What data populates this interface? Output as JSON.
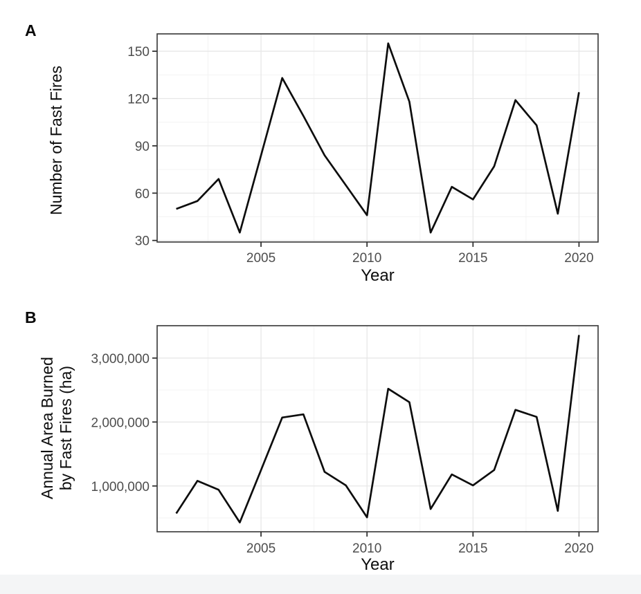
{
  "page": {
    "background": "#ffffff",
    "bottom_bar_color": "#f4f5f6"
  },
  "chart_data": [
    {
      "panel_label": "A",
      "type": "line",
      "title": "",
      "xlabel": "Year",
      "ylabel": "Number of Fast Fires",
      "ylabel_lines": [
        "Number of Fast Fires"
      ],
      "x": [
        2001,
        2002,
        2003,
        2004,
        2005,
        2006,
        2007,
        2008,
        2009,
        2010,
        2011,
        2012,
        2013,
        2014,
        2015,
        2016,
        2017,
        2018,
        2019,
        2020
      ],
      "values": [
        50,
        55,
        69,
        35,
        84,
        133,
        109,
        84,
        65,
        46,
        155,
        118,
        35,
        64,
        56,
        77,
        119,
        103,
        47,
        124
      ],
      "xlim": [
        2000.1,
        2020.9
      ],
      "ylim": [
        29,
        161
      ],
      "x_ticks": [
        2005,
        2010,
        2015,
        2020
      ],
      "x_tick_labels": [
        "2005",
        "2010",
        "2015",
        "2020"
      ],
      "x_minor_ticks": [
        2002.5,
        2007.5,
        2012.5,
        2017.5
      ],
      "y_ticks": [
        30,
        60,
        90,
        120,
        150
      ],
      "y_tick_labels": [
        "30",
        "60",
        "90",
        "120",
        "150"
      ],
      "y_minor_ticks": [
        45,
        75,
        105,
        135
      ],
      "grid": true,
      "legend": "none",
      "line_color": "#0d0d0d",
      "tick_label_color": "#4d4d4d",
      "tick_mark_color": "#333333",
      "grid_major_color": "#e7e7e7",
      "grid_minor_color": "#f3f3f3",
      "border_color": "#414141",
      "plot_background": "#ffffff"
    },
    {
      "panel_label": "B",
      "type": "line",
      "title": "",
      "xlabel": "Year",
      "ylabel": "Annual Area Burned by Fast Fires (ha)",
      "ylabel_lines": [
        "Annual Area Burned",
        "by Fast Fires (ha)"
      ],
      "x": [
        2001,
        2002,
        2003,
        2004,
        2005,
        2006,
        2007,
        2008,
        2009,
        2010,
        2011,
        2012,
        2013,
        2014,
        2015,
        2016,
        2017,
        2018,
        2019,
        2020
      ],
      "values": [
        570000,
        1080000,
        940000,
        430000,
        1250000,
        2070000,
        2120000,
        1220000,
        1010000,
        510000,
        2520000,
        2310000,
        640000,
        1180000,
        1010000,
        1250000,
        2190000,
        2080000,
        610000,
        3360000
      ],
      "xlim": [
        2000.1,
        2020.9
      ],
      "ylim": [
        284000,
        3506000
      ],
      "x_ticks": [
        2005,
        2010,
        2015,
        2020
      ],
      "x_tick_labels": [
        "2005",
        "2010",
        "2015",
        "2020"
      ],
      "x_minor_ticks": [
        2002.5,
        2007.5,
        2012.5,
        2017.5
      ],
      "y_ticks": [
        1000000,
        2000000,
        3000000
      ],
      "y_tick_labels": [
        "1,000,000",
        "2,000,000",
        "3,000,000"
      ],
      "y_minor_ticks": [
        500000,
        1500000,
        2500000
      ],
      "grid": true,
      "legend": "none",
      "line_color": "#0d0d0d",
      "tick_label_color": "#4d4d4d",
      "tick_mark_color": "#333333",
      "grid_major_color": "#e7e7e7",
      "grid_minor_color": "#f3f3f3",
      "border_color": "#414141",
      "plot_background": "#ffffff"
    }
  ]
}
